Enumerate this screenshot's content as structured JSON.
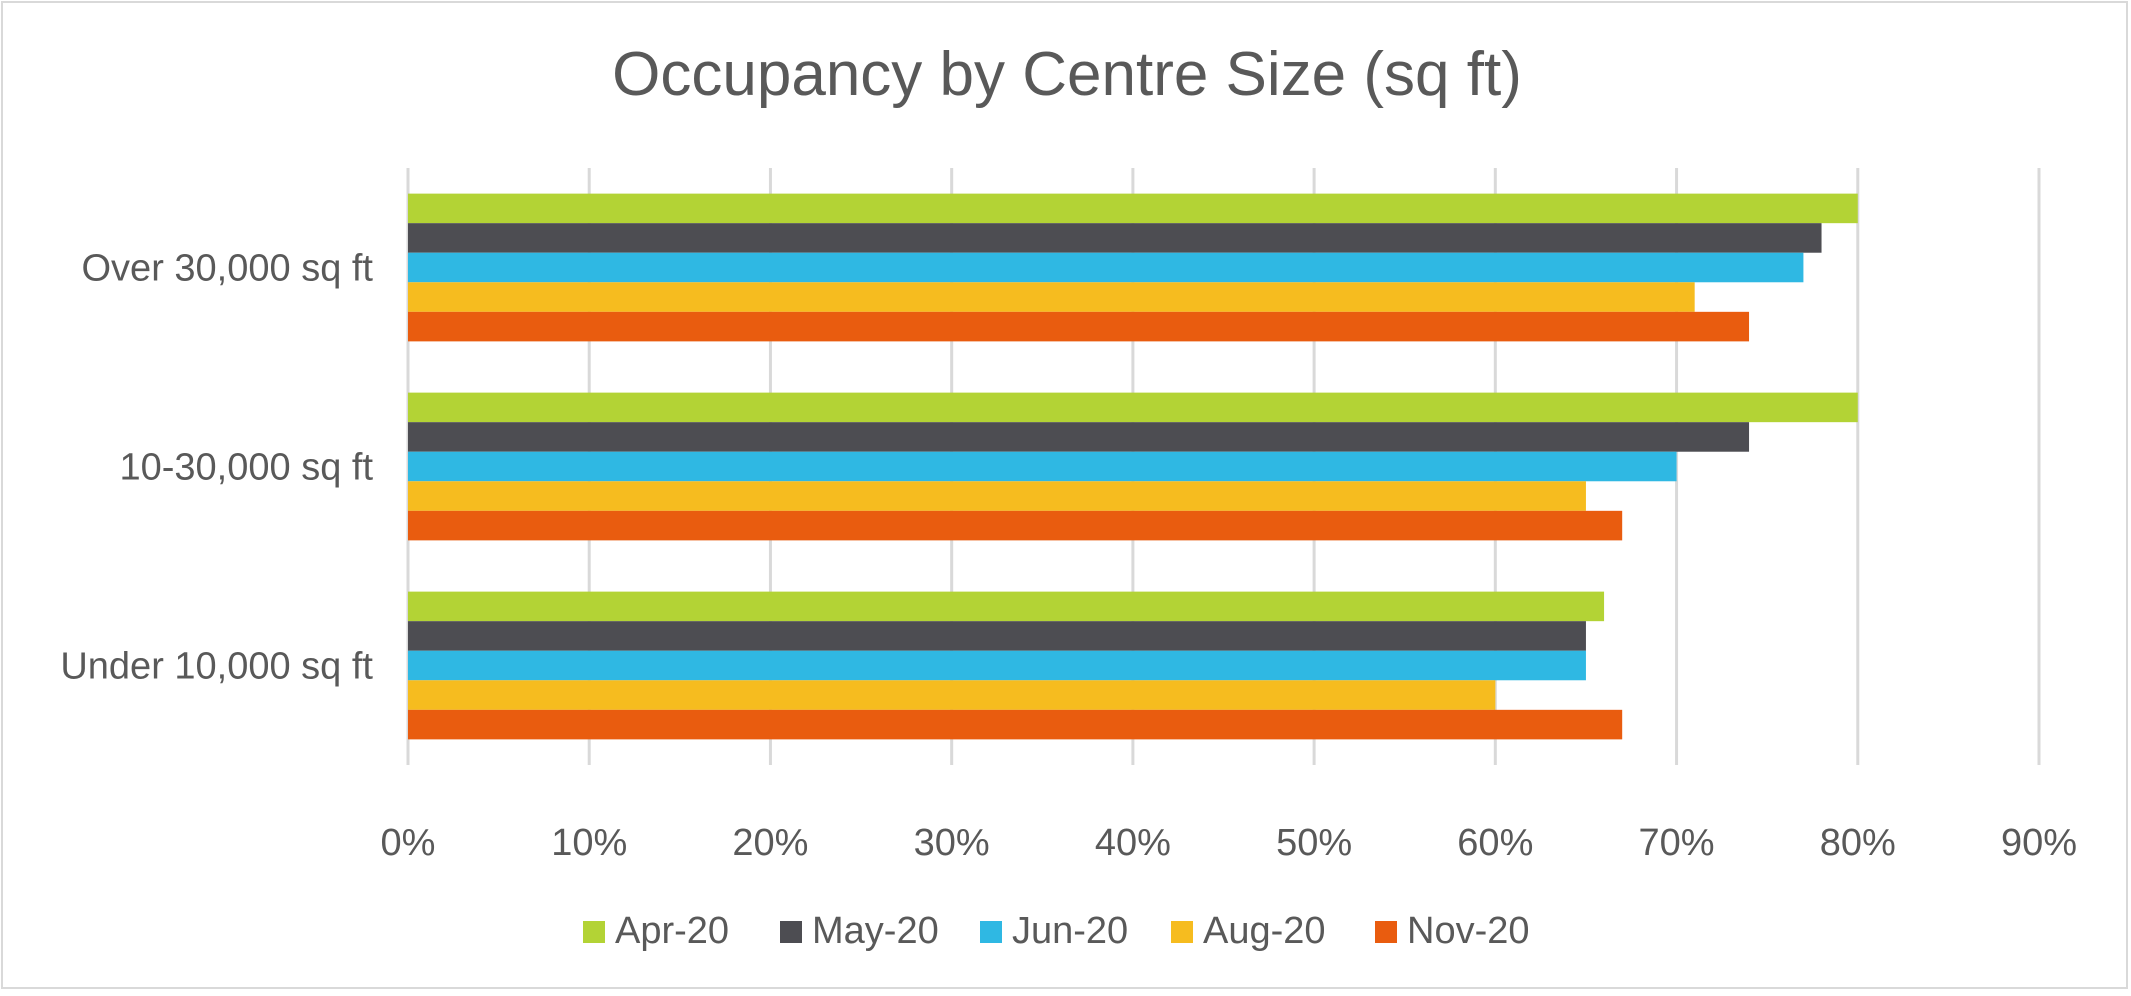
{
  "chart_data": {
    "type": "bar",
    "orientation": "horizontal",
    "title": "Occupancy by Centre Size (sq ft)",
    "xlabel": "",
    "ylabel": "",
    "categories": [
      "Over 30,000 sq ft",
      "10-30,000 sq ft",
      "Under 10,000 sq ft"
    ],
    "series": [
      {
        "name": "Apr-20",
        "color": "#b3d335",
        "values": [
          0.8,
          0.8,
          0.66
        ]
      },
      {
        "name": "May-20",
        "color": "#4d4d52",
        "values": [
          0.78,
          0.74,
          0.65
        ]
      },
      {
        "name": "Jun-20",
        "color": "#2fb8e3",
        "values": [
          0.77,
          0.7,
          0.65
        ]
      },
      {
        "name": "Aug-20",
        "color": "#f6bc1f",
        "values": [
          0.71,
          0.65,
          0.6
        ]
      },
      {
        "name": "Nov-20",
        "color": "#e95c0f",
        "values": [
          0.74,
          0.67,
          0.67
        ]
      }
    ],
    "xlim": [
      0,
      0.9
    ],
    "x_ticks": [
      "0%",
      "10%",
      "20%",
      "30%",
      "40%",
      "50%",
      "60%",
      "70%",
      "80%",
      "90%"
    ],
    "grid": true,
    "legend": "bottom"
  }
}
